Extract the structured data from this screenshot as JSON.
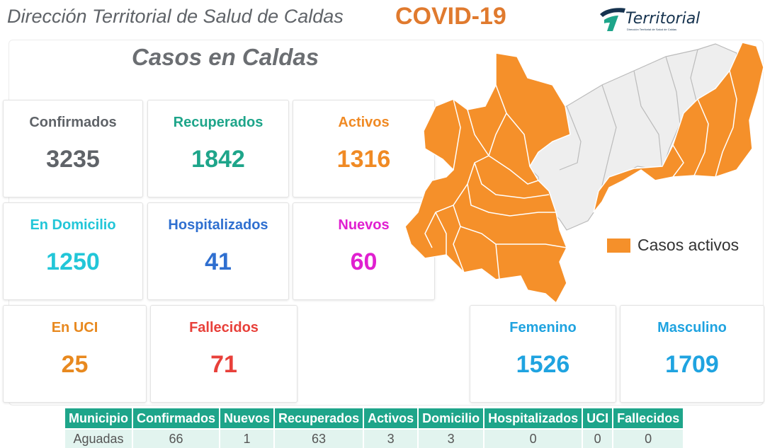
{
  "header": {
    "title": "Dirección Territorial de Salud de Caldas",
    "covid": "COVID-19",
    "logo_text": "Territorial",
    "logo_sub": "Dirección Territorial de Salud de Caldas"
  },
  "section_title": "Casos en Caldas",
  "stats": {
    "confirmados": {
      "label": "Confirmados",
      "value": "3235",
      "color": "#5f6368"
    },
    "recuperados": {
      "label": "Recuperados",
      "value": "1842",
      "color": "#1ea58a"
    },
    "activos": {
      "label": "Activos",
      "value": "1316",
      "color": "#f08a24"
    },
    "domicilio": {
      "label": "En Domicilio",
      "value": "1250",
      "color": "#22c6d8"
    },
    "hospitalizados": {
      "label": "Hospitalizados",
      "value": "41",
      "color": "#2f6fd0"
    },
    "nuevos": {
      "label": "Nuevos",
      "value": "60",
      "color": "#e020d0"
    },
    "uci": {
      "label": "En UCI",
      "value": "25",
      "color": "#e8891f"
    },
    "fallecidos": {
      "label": "Fallecidos",
      "value": "71",
      "color": "#e8403a"
    },
    "femenino": {
      "label": "Femenino",
      "value": "1526",
      "color": "#1fa3e0"
    },
    "masculino": {
      "label": "Masculino",
      "value": "1709",
      "color": "#1fa3e0"
    }
  },
  "map": {
    "legend_label": "Casos activos",
    "active_color": "#f5902a",
    "inactive_color": "#eeeeee"
  },
  "table": {
    "headers": [
      "Municipio",
      "Confirmados",
      "Nuevos",
      "Recuperados",
      "Activos",
      "Domicilio",
      "Hospitalizados",
      "UCI",
      "Fallecidos"
    ],
    "rows": [
      [
        "Aguadas",
        "66",
        "1",
        "63",
        "3",
        "3",
        "0",
        "0",
        "0"
      ]
    ]
  }
}
